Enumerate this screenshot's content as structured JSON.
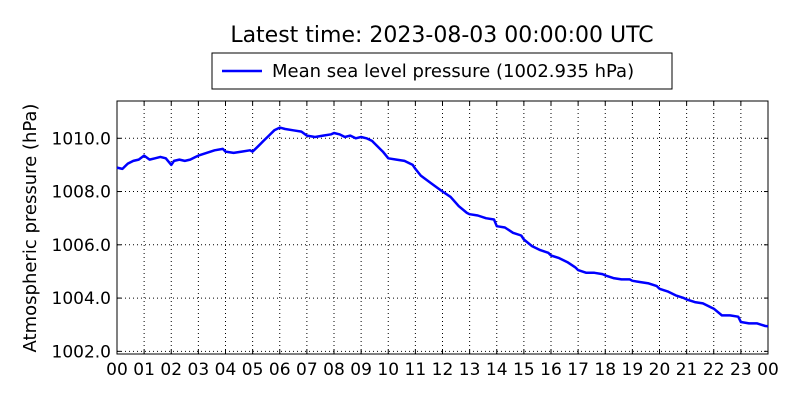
{
  "chart_data": {
    "type": "line",
    "title": "Latest time: 2023-08-03 00:00:00 UTC",
    "xlabel": "",
    "ylabel": "Atmospheric pressure (hPa)",
    "x_unit": "hour (UTC)",
    "xlim": [
      0,
      24
    ],
    "ylim": [
      1001.9,
      1011.4
    ],
    "x_tick_values": [
      0,
      1,
      2,
      3,
      4,
      5,
      6,
      7,
      8,
      9,
      10,
      11,
      12,
      13,
      14,
      15,
      16,
      17,
      18,
      19,
      20,
      21,
      22,
      23,
      24
    ],
    "x_tick_labels": [
      "00",
      "01",
      "02",
      "03",
      "04",
      "05",
      "06",
      "07",
      "08",
      "09",
      "10",
      "11",
      "12",
      "13",
      "14",
      "15",
      "16",
      "17",
      "18",
      "19",
      "20",
      "21",
      "22",
      "23",
      "00"
    ],
    "y_tick_values": [
      1002,
      1004,
      1006,
      1008,
      1010
    ],
    "y_tick_labels": [
      "1002.0",
      "1004.0",
      "1006.0",
      "1008.0",
      "1010.0"
    ],
    "grid": true,
    "legend_position": "top-center",
    "series": [
      {
        "name": "Mean sea level pressure (1002.935 hPa)",
        "color": "#0000ff",
        "x": [
          0,
          0.2,
          0.4,
          0.6,
          0.8,
          1.0,
          1.2,
          1.4,
          1.6,
          1.8,
          2.0,
          2.1,
          2.3,
          2.5,
          2.7,
          2.9,
          3.0,
          3.3,
          3.6,
          3.9,
          4.0,
          4.3,
          4.6,
          4.9,
          5.0,
          5.2,
          5.4,
          5.6,
          5.8,
          6.0,
          6.2,
          6.5,
          6.8,
          7.0,
          7.3,
          7.6,
          7.9,
          8.0,
          8.2,
          8.4,
          8.6,
          8.8,
          9.0,
          9.2,
          9.4,
          9.6,
          9.8,
          10.0,
          10.3,
          10.6,
          10.9,
          11.0,
          11.2,
          11.4,
          11.6,
          11.8,
          12.0,
          12.3,
          12.6,
          12.9,
          13.0,
          13.3,
          13.6,
          13.9,
          14.0,
          14.3,
          14.6,
          14.9,
          15.0,
          15.3,
          15.6,
          15.9,
          16.0,
          16.3,
          16.6,
          16.9,
          17.0,
          17.3,
          17.6,
          17.9,
          18.0,
          18.3,
          18.6,
          18.9,
          19.0,
          19.3,
          19.6,
          19.9,
          20.0,
          20.3,
          20.6,
          20.9,
          21.0,
          21.3,
          21.6,
          21.9,
          22.0,
          22.3,
          22.6,
          22.9,
          23.0,
          23.3,
          23.6,
          23.9,
          24.0
        ],
        "y": [
          1008.9,
          1008.85,
          1009.05,
          1009.15,
          1009.2,
          1009.35,
          1009.2,
          1009.25,
          1009.3,
          1009.25,
          1009.0,
          1009.15,
          1009.2,
          1009.15,
          1009.2,
          1009.3,
          1009.35,
          1009.45,
          1009.55,
          1009.6,
          1009.5,
          1009.45,
          1009.5,
          1009.55,
          1009.5,
          1009.7,
          1009.9,
          1010.1,
          1010.3,
          1010.4,
          1010.35,
          1010.3,
          1010.25,
          1010.1,
          1010.05,
          1010.1,
          1010.15,
          1010.2,
          1010.15,
          1010.05,
          1010.1,
          1010.0,
          1010.05,
          1010.0,
          1009.9,
          1009.7,
          1009.5,
          1009.25,
          1009.2,
          1009.15,
          1009.0,
          1008.85,
          1008.6,
          1008.45,
          1008.3,
          1008.15,
          1008.0,
          1007.8,
          1007.45,
          1007.2,
          1007.15,
          1007.1,
          1007.0,
          1006.95,
          1006.7,
          1006.65,
          1006.45,
          1006.35,
          1006.2,
          1005.95,
          1005.8,
          1005.7,
          1005.6,
          1005.5,
          1005.35,
          1005.15,
          1005.05,
          1004.95,
          1004.95,
          1004.9,
          1004.85,
          1004.75,
          1004.7,
          1004.7,
          1004.65,
          1004.6,
          1004.55,
          1004.45,
          1004.35,
          1004.25,
          1004.1,
          1004.0,
          1003.95,
          1003.85,
          1003.8,
          1003.65,
          1003.6,
          1003.35,
          1003.35,
          1003.3,
          1003.1,
          1003.05,
          1003.05,
          1002.95,
          1002.94
        ]
      }
    ]
  }
}
